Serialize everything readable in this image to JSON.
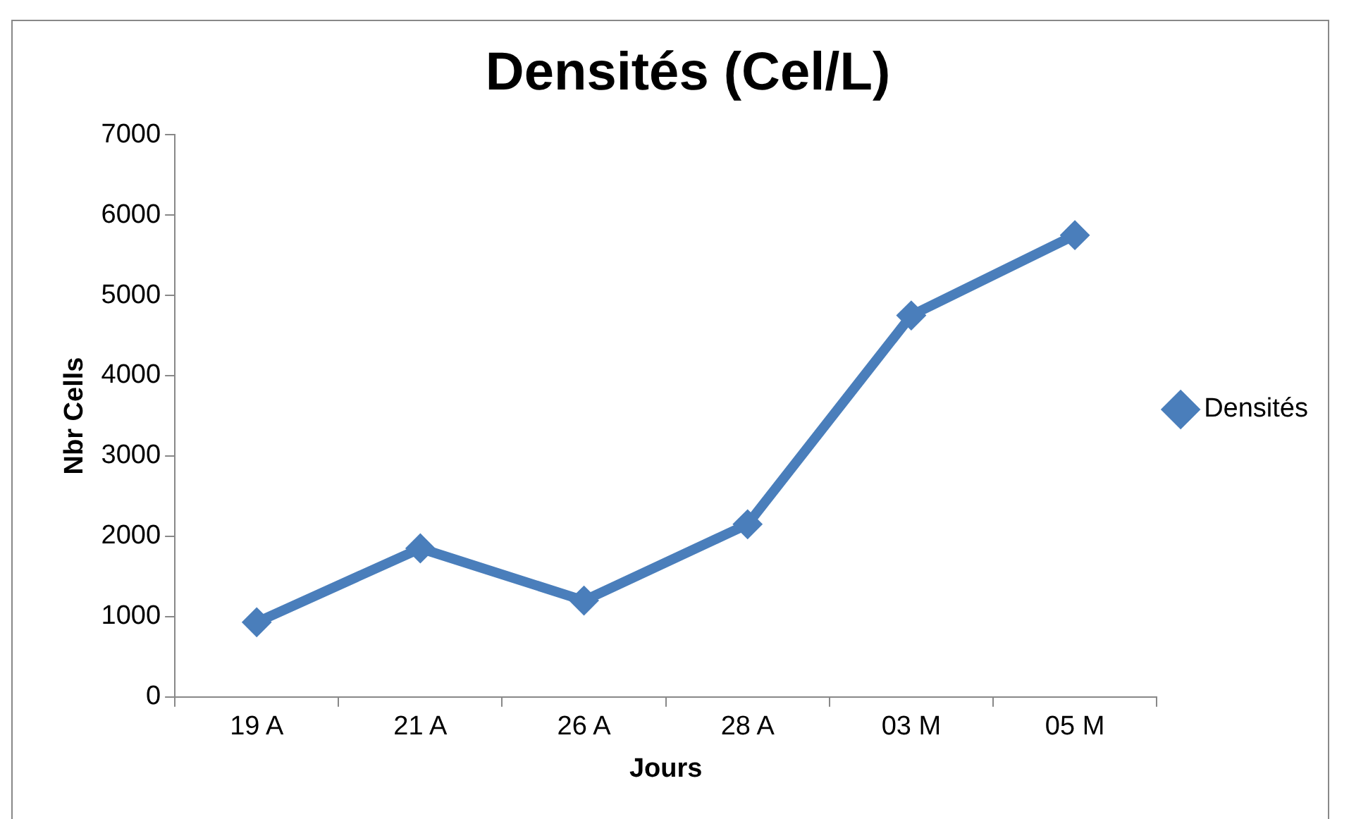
{
  "chart_data": {
    "type": "line",
    "title": "Densités (Cel/L)",
    "xlabel": "Jours",
    "ylabel": "Nbr Cells",
    "categories": [
      "19 A",
      "21 A",
      "26 A",
      "28 A",
      "03 M",
      "05 M"
    ],
    "series": [
      {
        "name": "Densités",
        "color": "#4a7ebb",
        "values": [
          930,
          1850,
          1200,
          2150,
          4750,
          5750
        ]
      }
    ],
    "ylim": [
      0,
      7000
    ],
    "yticks": [
      0,
      1000,
      2000,
      3000,
      4000,
      5000,
      6000,
      7000
    ],
    "grid": false,
    "legend": "right",
    "marker": "diamond",
    "line_style": "solid"
  }
}
